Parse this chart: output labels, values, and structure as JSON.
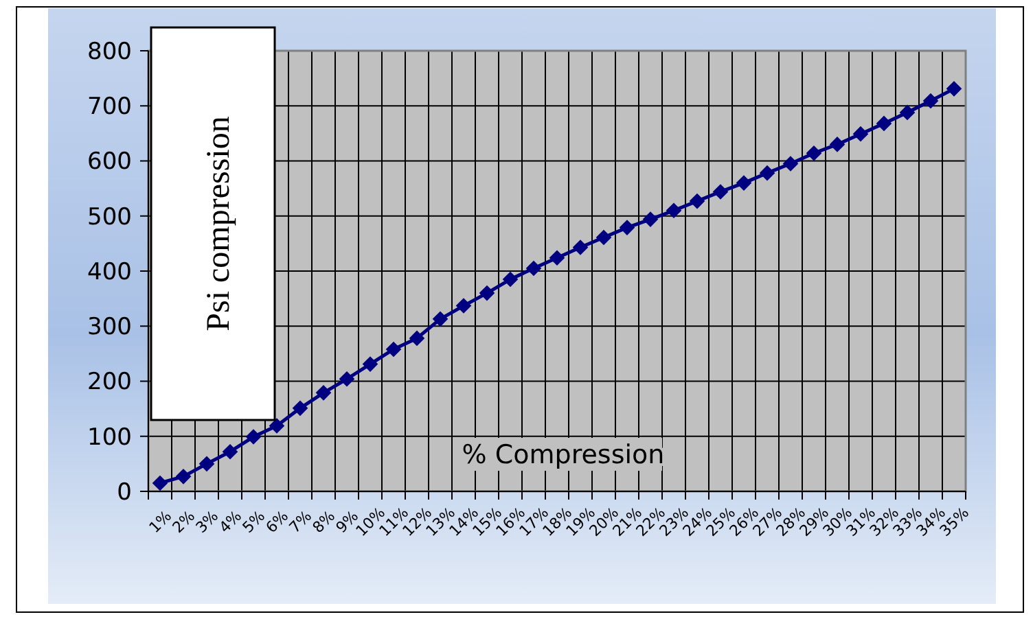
{
  "chart_data": {
    "type": "line",
    "xlabel": "% Compression",
    "ylabel": "Psi compression",
    "categories": [
      "1%",
      "2%",
      "3%",
      "4%",
      "5%",
      "6%",
      "7%",
      "8%",
      "9%",
      "10%",
      "11%",
      "12%",
      "13%",
      "14%",
      "15%",
      "16%",
      "17%",
      "18%",
      "19%",
      "20%",
      "21%",
      "22%",
      "23%",
      "24%",
      "25%",
      "26%",
      "27%",
      "28%",
      "29%",
      "30%",
      "31%",
      "32%",
      "33%",
      "34%",
      "35%"
    ],
    "series": [
      {
        "color": "#000080",
        "values": [
          15,
          27,
          50,
          72,
          99,
          119,
          151,
          179,
          204,
          231,
          258,
          278,
          313,
          337,
          360,
          385,
          405,
          424,
          443,
          461,
          479,
          494,
          510,
          527,
          544,
          560,
          578,
          595,
          614,
          630,
          649,
          668,
          688,
          709,
          731
        ]
      }
    ],
    "ylim": [
      0,
      800
    ],
    "yticks": [
      0,
      100,
      200,
      300,
      400,
      500,
      600,
      700,
      800
    ],
    "grid": true,
    "marker": "diamond",
    "line_style": "solid"
  }
}
